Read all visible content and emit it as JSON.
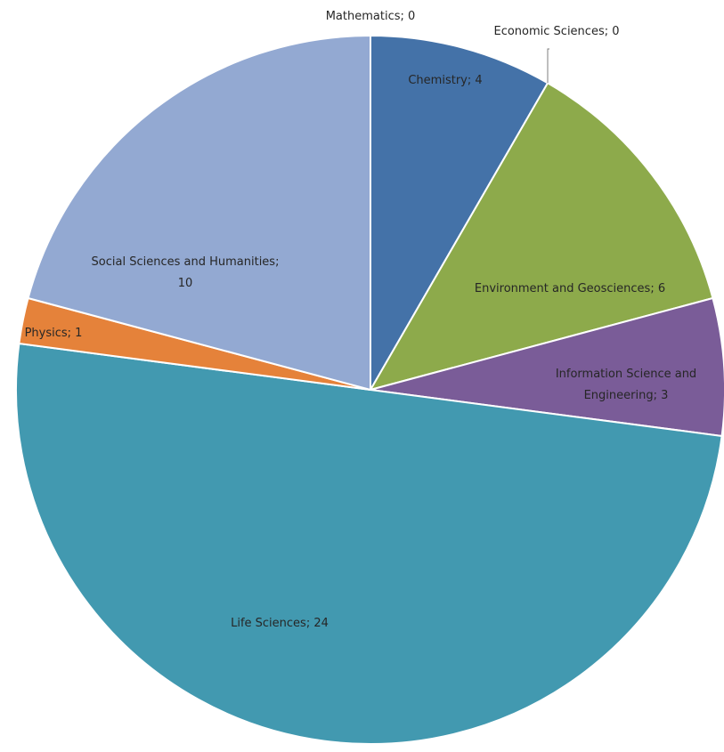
{
  "chart_data": {
    "type": "pie",
    "title": "",
    "slices": [
      {
        "label": "Mathematics; 0",
        "category": "Mathematics",
        "value": 0,
        "color": "#4F81BD"
      },
      {
        "label": "Chemistry; 4",
        "category": "Chemistry",
        "value": 4,
        "color": "#4472A8"
      },
      {
        "label": "Economic Sciences; 0",
        "category": "Economic Sciences",
        "value": 0,
        "color": "#C0504D"
      },
      {
        "label": "Environment and Geosciences; 6",
        "category": "Environment and Geosciences",
        "value": 6,
        "color": "#8DAA4B"
      },
      {
        "label": "Information Science and Engineering; 3",
        "category": "Information Science and Engineering",
        "value": 3,
        "color": "#7A5C98"
      },
      {
        "label": "Life Sciences; 24",
        "category": "Life Sciences",
        "value": 24,
        "color": "#4299B0"
      },
      {
        "label": "Physics; 1",
        "category": "Physics",
        "value": 1,
        "color": "#E5823A"
      },
      {
        "label": "Social Sciences and Humanities; 10",
        "category": "Social Sciences and Humanities",
        "value": 10,
        "color": "#93A9D2"
      }
    ],
    "start_angle_deg": 0,
    "direction": "clockwise",
    "legend": "none",
    "data_labels": "category; value"
  }
}
